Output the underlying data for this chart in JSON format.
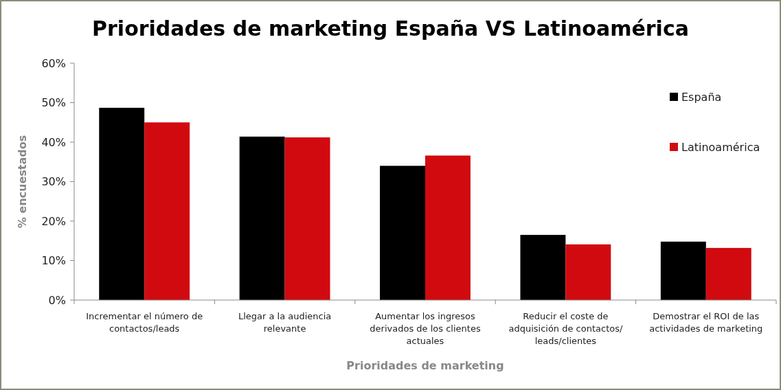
{
  "chart_data": {
    "type": "bar",
    "title": "Prioridades de marketing España VS Latinoamérica",
    "xlabel": "Prioridades de marketing",
    "ylabel": "% encuestados",
    "categories": [
      "Incrementar el número de contactos/leads",
      "Llegar a la audiencia relevante",
      "Aumentar los ingresos derivados de los clientes actuales",
      "Reducir el coste de adquisición de contactos/ leads/clientes",
      "Demostrar el ROI de las actividades de marketing"
    ],
    "series": [
      {
        "name": "España",
        "color": "#000000",
        "values": [
          48.7,
          41.4,
          34.0,
          16.5,
          14.8
        ]
      },
      {
        "name": "Latinoamérica",
        "color": "#d10a10",
        "values": [
          45.0,
          41.2,
          36.6,
          14.1,
          13.2
        ]
      }
    ],
    "ylim": [
      0,
      60
    ],
    "yticks": [
      {
        "value": 0,
        "label": "0%"
      },
      {
        "value": 10,
        "label": "10%"
      },
      {
        "value": 20,
        "label": "20%"
      },
      {
        "value": 30,
        "label": "30%"
      },
      {
        "value": 40,
        "label": "40%"
      },
      {
        "value": 50,
        "label": "50%"
      },
      {
        "value": 60,
        "label": "60%"
      }
    ],
    "legend": "top right",
    "grid": false
  }
}
